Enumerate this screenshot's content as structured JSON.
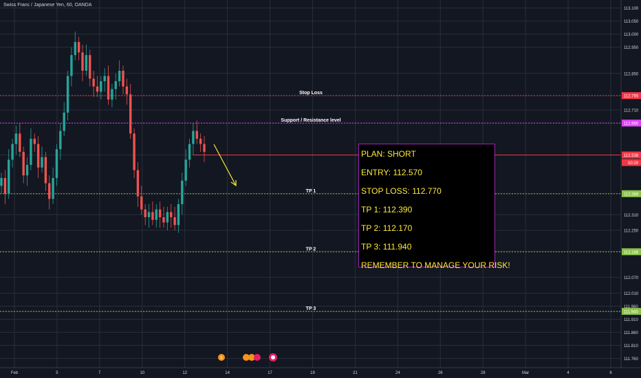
{
  "header": {
    "symbol_line": "Swiss Franc / Japanese Yen, 60, OANDA"
  },
  "chart_data": {
    "type": "candlestick",
    "symbol": "Swiss Franc / Japanese Yen",
    "interval": "60",
    "source": "OANDA",
    "ylim": [
      111.73,
      113.12
    ],
    "y_ticks": [
      "113.100",
      "113.050",
      "113.000",
      "112.950",
      "112.850",
      "112.765",
      "112.710",
      "112.660",
      "112.538",
      "112.390",
      "112.310",
      "112.250",
      "112.168",
      "112.070",
      "112.010",
      "111.960",
      "111.940",
      "111.910",
      "111.860",
      "111.810",
      "111.760"
    ],
    "x_ticks": [
      "Feb",
      "5",
      "7",
      "10",
      "12",
      "14",
      "17",
      "19",
      "21",
      "24",
      "26",
      "28",
      "Mar",
      "4",
      "6"
    ],
    "grid": true,
    "candles_close": [
      112.45,
      112.39,
      112.52,
      112.58,
      112.62,
      112.55,
      112.46,
      112.5,
      112.6,
      112.58,
      112.49,
      112.53,
      112.43,
      112.37,
      112.45,
      112.56,
      112.63,
      112.7,
      112.84,
      112.92,
      112.97,
      112.93,
      112.86,
      112.92,
      112.83,
      112.8,
      112.78,
      112.82,
      112.84,
      112.75,
      112.79,
      112.82,
      112.86,
      112.8,
      112.77,
      112.62,
      112.48,
      112.38,
      112.33,
      112.3,
      112.32,
      112.29,
      112.33,
      112.3,
      112.28,
      112.32,
      112.3,
      112.27,
      112.35,
      112.44,
      112.52,
      112.58,
      112.63,
      112.6,
      112.58,
      112.55
    ],
    "levels": [
      {
        "label": "Stop Loss",
        "price": 112.765,
        "axis_label": "112.765",
        "color": "#f23645"
      },
      {
        "label": "Support / Resistance level",
        "price": 112.66,
        "axis_label": "112.660",
        "color": "#e040fb"
      },
      {
        "label": "",
        "price": 112.538,
        "axis_label": "112.538",
        "color": "#f23645"
      },
      {
        "label": "TP 1",
        "price": 112.39,
        "axis_label": "112.389",
        "color": "#8bc34a"
      },
      {
        "label": "TP 2",
        "price": 112.168,
        "axis_label": "112.168",
        "color": "#8bc34a"
      },
      {
        "label": "TP 3",
        "price": 111.94,
        "axis_label": "111.940",
        "color": "#8bc34a"
      }
    ],
    "countdown": "50:29",
    "current_price": 112.538
  },
  "plan_box": {
    "lines": [
      "PLAN: SHORT",
      "ENTRY: 112.570",
      "STOP LOSS: 112.770",
      "TP 1: 112.390",
      "TP 2: 112.170",
      "TP 3: 111.940",
      "REMEMBER TO MANAGE YOUR RISK!"
    ]
  },
  "colors": {
    "background": "#131722",
    "grid": "#2a2e39",
    "bull": "#26a69a",
    "bear": "#ef5350",
    "axis_text": "#d1d4dc",
    "arrow": "#f5e93a",
    "plan_text": "#ffeb3b",
    "plan_border": "#9c27b0"
  }
}
